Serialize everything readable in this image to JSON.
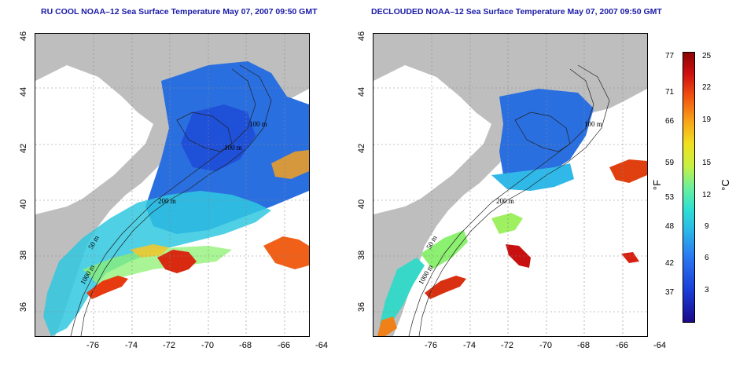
{
  "titles": {
    "left": "RU COOL NOAA–12 Sea Surface Temperature May 07, 2007 09:50 GMT",
    "right": "DECLOUDED NOAA–12 Sea Surface Temperature May 07, 2007 09:50 GMT"
  },
  "axes": {
    "lat_ticks": [
      "46",
      "44",
      "42",
      "40",
      "38",
      "36"
    ],
    "lon_ticks": [
      "-76",
      "-74",
      "-72",
      "-70",
      "-68",
      "-66",
      "-64"
    ]
  },
  "contour_labels": [
    "100 m",
    "200 m",
    "100 m",
    "50 m",
    "1000 m"
  ],
  "contour_labels_right": [
    "100 m",
    "200 m",
    "50 m",
    "1000 m"
  ],
  "colorbar": {
    "fahrenheit_ticks": [
      "77",
      "71",
      "66",
      "59",
      "53",
      "48",
      "42",
      "37"
    ],
    "celsius_ticks": [
      "25",
      "22",
      "19",
      "15",
      "12",
      "9",
      "6",
      "3"
    ],
    "unit_f": "°F",
    "unit_c": "°C"
  },
  "colors": {
    "land": "#bebebe",
    "cloud": "#ffffff",
    "title": "#1a1aa8"
  }
}
